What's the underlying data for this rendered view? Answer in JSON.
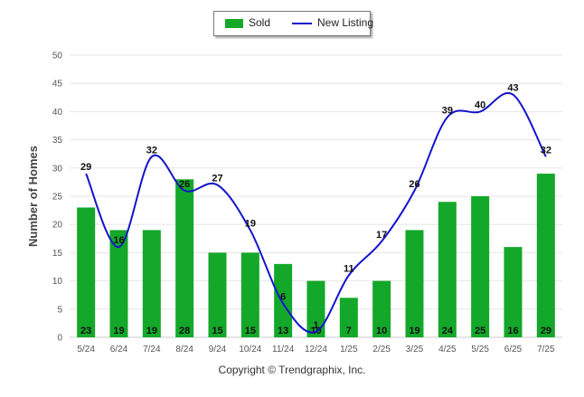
{
  "legend": {
    "sold_label": "Sold",
    "new_listing_label": "New Listing"
  },
  "copyright": "Copyright © Trendgraphix, Inc.",
  "colors": {
    "sold": "#13a829",
    "new_listing": "#1414cc",
    "grid": "#e6e6e6",
    "axis": "#888888"
  },
  "chart_data": {
    "type": "bar",
    "categories": [
      "5/24",
      "6/24",
      "7/24",
      "8/24",
      "9/24",
      "10/24",
      "11/24",
      "12/24",
      "1/25",
      "2/25",
      "3/25",
      "4/25",
      "5/25",
      "6/25",
      "7/25"
    ],
    "series": [
      {
        "name": "Sold",
        "type": "bar",
        "values": [
          23,
          19,
          19,
          28,
          15,
          15,
          13,
          10,
          7,
          10,
          19,
          24,
          25,
          16,
          29
        ]
      },
      {
        "name": "New Listing",
        "type": "line",
        "values": [
          29,
          16,
          32,
          26,
          27,
          19,
          6,
          1,
          11,
          17,
          26,
          39,
          40,
          43,
          32
        ]
      }
    ],
    "ylabel": "Number of Homes",
    "xlabel": "",
    "ylim": [
      0,
      50
    ],
    "yticks": [
      0,
      5,
      10,
      15,
      20,
      25,
      30,
      35,
      40,
      45,
      50
    ],
    "grid": true,
    "legend_position": "top-center"
  }
}
